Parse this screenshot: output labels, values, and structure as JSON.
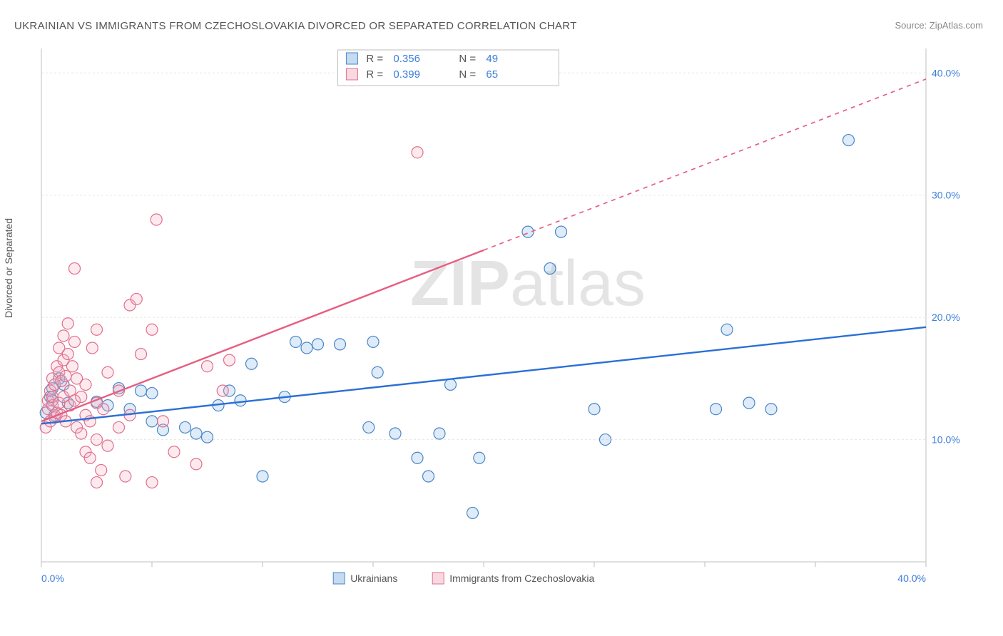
{
  "title": "UKRAINIAN VS IMMIGRANTS FROM CZECHOSLOVAKIA DIVORCED OR SEPARATED CORRELATION CHART",
  "source_prefix": "Source: ",
  "source_link": "ZipAtlas.com",
  "ylabel": "Divorced or Separated",
  "watermark": "ZIPatlas",
  "chart": {
    "type": "scatter-with-regression",
    "background_color": "#ffffff",
    "grid_color": "#e5e5e5",
    "axis_line_color": "#bfbfbf",
    "tick_color": "#bfbfbf",
    "xlim": [
      0,
      40
    ],
    "ylim": [
      0,
      42
    ],
    "x_ticks": [
      0,
      5,
      10,
      15,
      20,
      25,
      30,
      35,
      40
    ],
    "x_tick_labels": {
      "0": "0.0%",
      "40": "40.0%"
    },
    "y_gridlines": [
      10,
      20,
      30,
      40
    ],
    "y_tick_labels": {
      "10": "10.0%",
      "20": "20.0%",
      "30": "30.0%",
      "40": "40.0%"
    },
    "axis_label_color": "#3b7dd8",
    "axis_label_fontsize": 14,
    "marker_radius": 8,
    "marker_stroke_width": 1.2,
    "marker_fill_opacity": 0.28,
    "line_width": 2.4,
    "series": [
      {
        "id": "ukrainians",
        "label": "Ukrainians",
        "marker_fill": "#8ab8e6",
        "marker_stroke": "#4a86c5",
        "line_color": "#2a6fd6",
        "R": 0.356,
        "N": 49,
        "regression_solid": {
          "x0": 0,
          "y0": 11.3,
          "x1": 40,
          "y1": 19.2
        },
        "points": [
          [
            0.2,
            12.2
          ],
          [
            0.4,
            13.5
          ],
          [
            0.5,
            14.2
          ],
          [
            0.5,
            13.2
          ],
          [
            0.6,
            12.0
          ],
          [
            0.8,
            15.0
          ],
          [
            1.0,
            14.5
          ],
          [
            1.2,
            13.0
          ],
          [
            2.5,
            13.1
          ],
          [
            3.0,
            12.8
          ],
          [
            3.5,
            14.2
          ],
          [
            4.0,
            12.5
          ],
          [
            4.5,
            14.0
          ],
          [
            5.0,
            11.5
          ],
          [
            5.0,
            13.8
          ],
          [
            5.5,
            10.8
          ],
          [
            6.5,
            11.0
          ],
          [
            7.0,
            10.5
          ],
          [
            7.5,
            10.2
          ],
          [
            8.0,
            12.8
          ],
          [
            8.5,
            14.0
          ],
          [
            9.0,
            13.2
          ],
          [
            9.5,
            16.2
          ],
          [
            10.0,
            7.0
          ],
          [
            11.0,
            13.5
          ],
          [
            11.5,
            18.0
          ],
          [
            12.0,
            17.5
          ],
          [
            12.5,
            17.8
          ],
          [
            13.5,
            17.8
          ],
          [
            14.8,
            11.0
          ],
          [
            15.0,
            18.0
          ],
          [
            15.2,
            15.5
          ],
          [
            16.0,
            10.5
          ],
          [
            17.0,
            8.5
          ],
          [
            17.5,
            7.0
          ],
          [
            18.0,
            10.5
          ],
          [
            18.5,
            14.5
          ],
          [
            19.5,
            4.0
          ],
          [
            19.8,
            8.5
          ],
          [
            22.0,
            27.0
          ],
          [
            23.5,
            27.0
          ],
          [
            23.0,
            24.0
          ],
          [
            25.0,
            12.5
          ],
          [
            25.5,
            10.0
          ],
          [
            30.5,
            12.5
          ],
          [
            31.0,
            19.0
          ],
          [
            32.0,
            13.0
          ],
          [
            33.0,
            12.5
          ],
          [
            36.5,
            34.5
          ]
        ]
      },
      {
        "id": "czechoslovakia",
        "label": "Immigrants from Czechoslovakia",
        "marker_fill": "#f4b4c4",
        "marker_stroke": "#e06f8b",
        "line_color": "#e85d7f",
        "R": 0.399,
        "N": 65,
        "regression_solid": {
          "x0": 0,
          "y0": 11.5,
          "x1": 20,
          "y1": 25.5
        },
        "regression_dashed": {
          "x0": 20,
          "y0": 25.5,
          "x1": 40,
          "y1": 39.5
        },
        "points": [
          [
            0.2,
            11.0
          ],
          [
            0.3,
            12.5
          ],
          [
            0.3,
            13.2
          ],
          [
            0.4,
            11.5
          ],
          [
            0.4,
            14.0
          ],
          [
            0.5,
            12.8
          ],
          [
            0.5,
            13.5
          ],
          [
            0.5,
            15.0
          ],
          [
            0.6,
            11.8
          ],
          [
            0.6,
            14.5
          ],
          [
            0.7,
            12.2
          ],
          [
            0.7,
            16.0
          ],
          [
            0.8,
            13.0
          ],
          [
            0.8,
            15.5
          ],
          [
            0.8,
            17.5
          ],
          [
            0.9,
            12.0
          ],
          [
            0.9,
            14.8
          ],
          [
            1.0,
            13.5
          ],
          [
            1.0,
            16.5
          ],
          [
            1.0,
            18.5
          ],
          [
            1.1,
            11.5
          ],
          [
            1.1,
            15.2
          ],
          [
            1.2,
            17.0
          ],
          [
            1.2,
            19.5
          ],
          [
            1.3,
            12.8
          ],
          [
            1.3,
            14.0
          ],
          [
            1.4,
            16.0
          ],
          [
            1.5,
            13.2
          ],
          [
            1.5,
            18.0
          ],
          [
            1.6,
            11.0
          ],
          [
            1.6,
            15.0
          ],
          [
            1.5,
            24.0
          ],
          [
            1.8,
            10.5
          ],
          [
            1.8,
            13.5
          ],
          [
            2.0,
            9.0
          ],
          [
            2.0,
            12.0
          ],
          [
            2.0,
            14.5
          ],
          [
            2.2,
            8.5
          ],
          [
            2.2,
            11.5
          ],
          [
            2.3,
            17.5
          ],
          [
            2.5,
            6.5
          ],
          [
            2.5,
            10.0
          ],
          [
            2.5,
            13.0
          ],
          [
            2.5,
            19.0
          ],
          [
            2.7,
            7.5
          ],
          [
            2.8,
            12.5
          ],
          [
            3.0,
            9.5
          ],
          [
            3.0,
            15.5
          ],
          [
            3.5,
            11.0
          ],
          [
            3.5,
            14.0
          ],
          [
            3.8,
            7.0
          ],
          [
            4.0,
            12.0
          ],
          [
            4.0,
            21.0
          ],
          [
            4.3,
            21.5
          ],
          [
            4.5,
            17.0
          ],
          [
            5.0,
            6.5
          ],
          [
            5.0,
            19.0
          ],
          [
            5.2,
            28.0
          ],
          [
            5.5,
            11.5
          ],
          [
            6.0,
            9.0
          ],
          [
            7.0,
            8.0
          ],
          [
            7.5,
            16.0
          ],
          [
            8.2,
            14.0
          ],
          [
            8.5,
            16.5
          ],
          [
            17.0,
            33.5
          ]
        ]
      }
    ],
    "legend_top": {
      "border_color": "#bfbfbf",
      "bg": "#ffffff",
      "text_color_label": "#555555",
      "text_color_value": "#3b7dd8",
      "fontsize": 15
    },
    "legend_bottom": {
      "text_color": "#555555",
      "fontsize": 14
    }
  }
}
